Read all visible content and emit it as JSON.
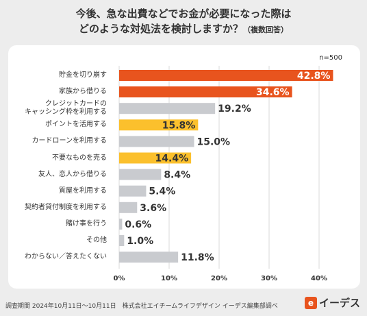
{
  "title": {
    "line1": "今後、急な出費などでお金が必要になった際は",
    "line2": "どのような対処法を検討しますか？",
    "note": "（複数回答）"
  },
  "n_label": "n=500",
  "footer": "調査期間 2024年10月11日〜10月11日　株式会社エイチームライフデザイン イーデス編集部調べ",
  "logo": {
    "mark": "e",
    "text": "イーデス"
  },
  "colors": {
    "top": "#e8541e",
    "highlight": "#fbc02d",
    "other": "#c9cbcf",
    "background": "#ededed"
  },
  "chart_data": {
    "type": "bar",
    "orientation": "horizontal",
    "categories": [
      "貯金を切り崩す",
      "家族から借りる",
      "クレジットカードの\nキャッシング枠を利用する",
      "ポイントを活用する",
      "カードローンを利用する",
      "不要なものを売る",
      "友人、恋人から借りる",
      "質屋を利用する",
      "契約者貸付制度を利用する",
      "賭け事を行う",
      "その他",
      "わからない／答えたくない"
    ],
    "values": [
      42.8,
      34.6,
      19.2,
      15.8,
      15.0,
      14.4,
      8.4,
      5.4,
      3.6,
      0.6,
      1.0,
      11.8
    ],
    "value_labels": [
      "42.8%",
      "34.6%",
      "19.2%",
      "15.8%",
      "15.0%",
      "14.4%",
      "8.4%",
      "5.4%",
      "3.6%",
      "0.6%",
      "1.0%",
      "11.8%"
    ],
    "bar_colors": [
      "top",
      "top",
      "other",
      "highlight",
      "other",
      "highlight",
      "other",
      "other",
      "other",
      "other",
      "other",
      "other"
    ],
    "xlim": [
      0,
      43
    ],
    "xticks": [
      0,
      10,
      20,
      30,
      40
    ],
    "xtick_labels": [
      "0%",
      "10%",
      "20%",
      "30%",
      "40%"
    ],
    "grid": "vertical",
    "legend": "none"
  }
}
